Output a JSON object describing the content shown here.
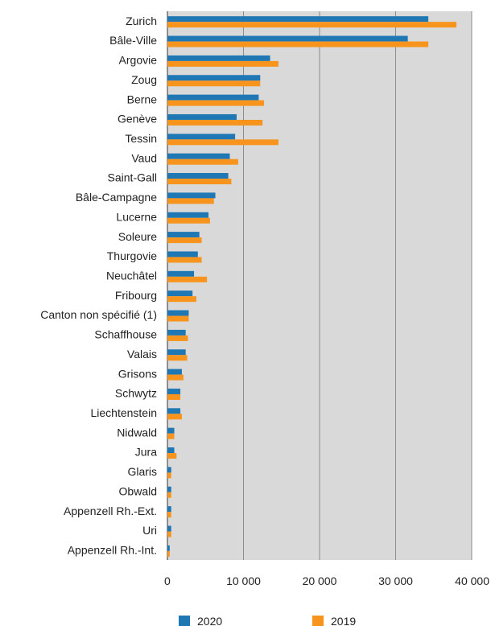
{
  "chart_data": {
    "type": "bar",
    "orientation": "horizontal",
    "categories": [
      "Zurich",
      "Bâle-Ville",
      "Argovie",
      "Zoug",
      "Berne",
      "Genève",
      "Tessin",
      "Vaud",
      "Saint-Gall",
      "Bâle-Campagne",
      "Lucerne",
      "Soleure",
      "Thurgovie",
      "Neuchâtel",
      "Fribourg",
      "Canton non spécifié (1)",
      "Schaffhouse",
      "Valais",
      "Grisons",
      "Schwytz",
      "Liechtenstein",
      "Nidwald",
      "Jura",
      "Glaris",
      "Obwald",
      "Appenzell Rh.-Ext.",
      "Uri",
      "Appenzell Rh.-Int."
    ],
    "series": [
      {
        "name": "2020",
        "color": "#1f77b4",
        "values": [
          34300,
          31600,
          13500,
          12200,
          12000,
          9100,
          8900,
          8200,
          8000,
          6300,
          5400,
          4200,
          4000,
          3500,
          3300,
          2800,
          2400,
          2400,
          1900,
          1700,
          1700,
          900,
          900,
          500,
          500,
          500,
          500,
          300
        ]
      },
      {
        "name": "2019",
        "color": "#f7941d",
        "values": [
          38000,
          34300,
          14600,
          12200,
          12700,
          12500,
          14600,
          9300,
          8400,
          6100,
          5600,
          4500,
          4500,
          5200,
          3800,
          2800,
          2700,
          2600,
          2100,
          1700,
          1900,
          900,
          1200,
          500,
          500,
          500,
          500,
          300
        ]
      }
    ],
    "xlim": [
      0,
      40000
    ],
    "xticks": [
      0,
      10000,
      20000,
      30000,
      40000
    ],
    "xtick_labels": [
      "0",
      "10 000",
      "20 000",
      "30 000",
      "40 000"
    ],
    "grid": true,
    "plot_background": "#d9d9d9",
    "legend": [
      "2020",
      "2019"
    ],
    "legend_position": "bottom"
  }
}
